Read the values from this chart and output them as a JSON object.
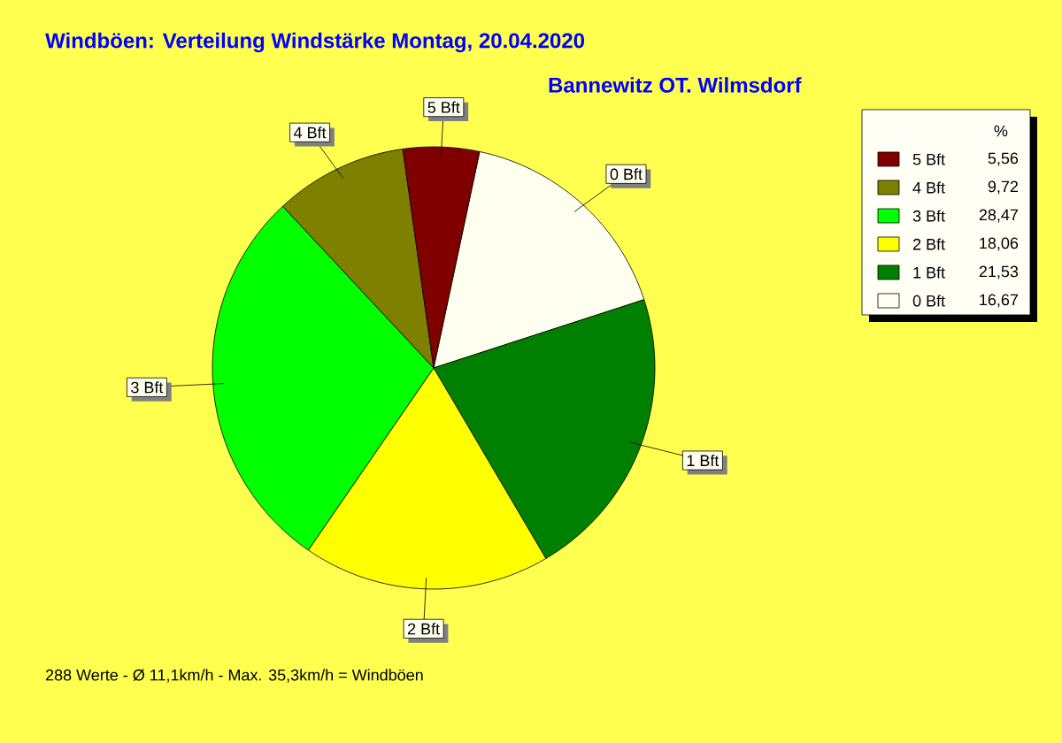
{
  "chart_data": {
    "type": "pie",
    "title": "Windböen: Verteilung Windstärke  Montag, 20.04.2020",
    "subtitle": "Bannewitz OT. Wilmsdorf",
    "categories": [
      "0 Bft",
      "1 Bft",
      "2 Bft",
      "3 Bft",
      "4 Bft",
      "5 Bft"
    ],
    "values": [
      16.67,
      21.53,
      18.06,
      28.47,
      9.72,
      5.56
    ],
    "value_labels": [
      "16,67",
      "21,53",
      "18,06",
      "28,47",
      "9,72",
      "5,56"
    ],
    "colors": [
      "#fffff0",
      "#008000",
      "#ffff00",
      "#00ff00",
      "#808000",
      "#800000"
    ],
    "legend": "top right",
    "legend_title": "%",
    "annotations": [
      "288 Werte   -   Ø 11,1km/h  -  Max. 35,3km/h = Windböen"
    ]
  }
}
